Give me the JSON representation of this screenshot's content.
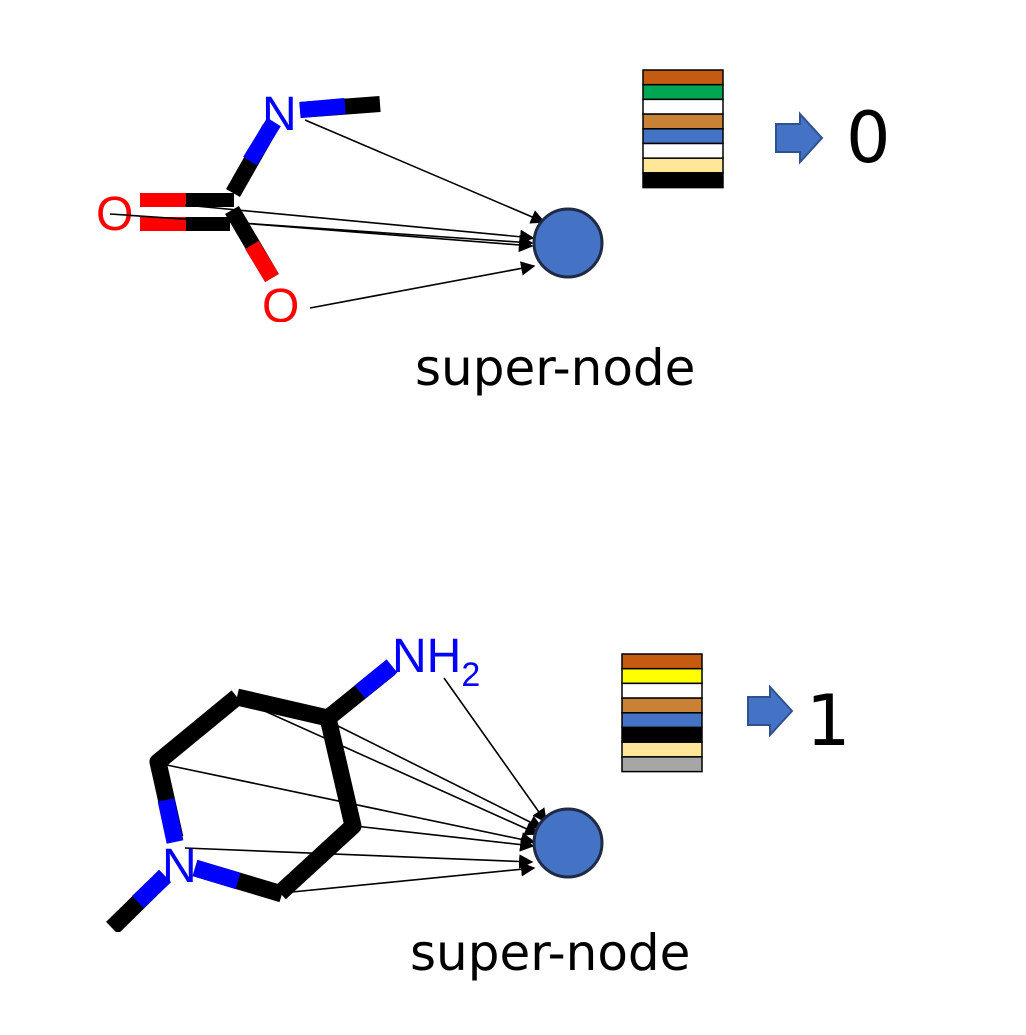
{
  "colors": {
    "nitrogen": "#0000ff",
    "oxygen": "#ff0000",
    "carbon_bond": "#000000",
    "super_node_fill": "#4472c4",
    "super_node_stroke": "#1f2a44",
    "arrow": "#000000"
  },
  "panels": [
    {
      "caption": "super-node",
      "output_value": "0",
      "atoms": {
        "n": "N",
        "o_double": "O",
        "o_single": "O"
      },
      "feature_colors": [
        "#c55a11",
        "#00a651",
        "#ffffff",
        "#c98135",
        "#4472c4",
        "#ffffff",
        "#ffe699",
        "#000000"
      ]
    },
    {
      "caption": "super-node",
      "output_value": "1",
      "atoms": {
        "nh": "NH",
        "sub": "2",
        "n": "N"
      },
      "feature_colors": [
        "#c55a11",
        "#ffff00",
        "#ffffff",
        "#c98135",
        "#4472c4",
        "#000000",
        "#ffe699",
        "#a6a6a6"
      ]
    }
  ]
}
